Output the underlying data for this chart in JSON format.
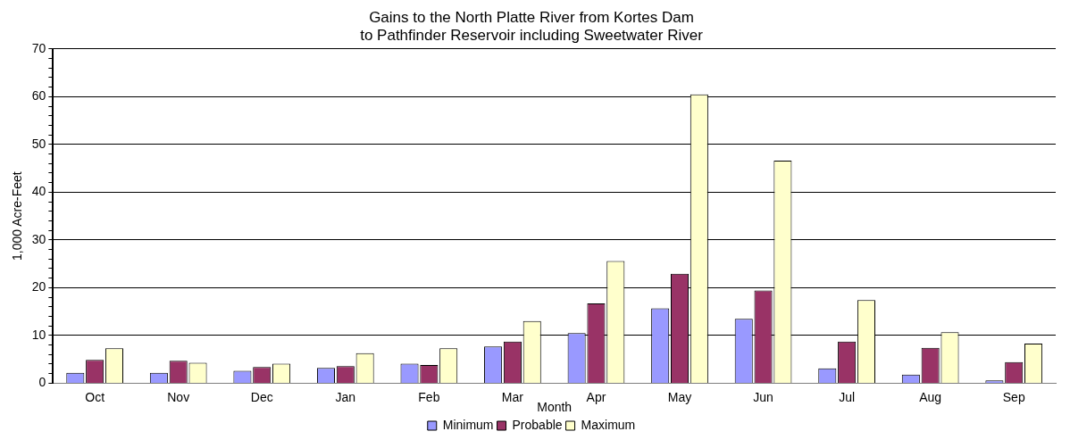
{
  "chart_data": {
    "type": "bar",
    "title": "Gains to the North Platte River from Kortes Dam\nto Pathfinder Reservoir including Sweetwater River",
    "xlabel": "Month",
    "ylabel": "1,000 Acre-Feet",
    "categories": [
      "Oct",
      "Nov",
      "Dec",
      "Jan",
      "Feb",
      "Mar",
      "Apr",
      "May",
      "Jun",
      "Jul",
      "Aug",
      "Sep"
    ],
    "series": [
      {
        "name": "Minimum",
        "color": "#9999ff",
        "values": [
          2.2,
          2.2,
          2.6,
          3.2,
          4.1,
          7.7,
          10.5,
          15.7,
          13.5,
          3.1,
          1.8,
          0.6
        ]
      },
      {
        "name": "Probable",
        "color": "#993366",
        "values": [
          4.9,
          4.7,
          3.4,
          3.6,
          3.8,
          8.7,
          16.7,
          22.9,
          19.4,
          8.7,
          7.4,
          4.4
        ]
      },
      {
        "name": "Maximum",
        "color": "#ffffcc",
        "values": [
          7.3,
          4.3,
          4.1,
          6.3,
          7.3,
          13,
          25.6,
          60.5,
          46.6,
          17.4,
          10.7,
          8.3
        ]
      }
    ],
    "ylim": [
      0,
      70
    ],
    "yticks": [
      0,
      {
        "value": 2,
        "label": null
      },
      {
        "value": 4,
        "label": null
      },
      {
        "value": 6,
        "label": null
      },
      {
        "value": 8,
        "label": null
      },
      10,
      {
        "value": 12,
        "label": null
      },
      {
        "value": 14,
        "label": null
      },
      {
        "value": 16,
        "label": null
      },
      {
        "value": 18,
        "label": null
      },
      20,
      {
        "value": 22,
        "label": null
      },
      {
        "value": 24,
        "label": null
      },
      {
        "value": 26,
        "label": null
      },
      {
        "value": 28,
        "label": null
      },
      30,
      {
        "value": 32,
        "label": null
      },
      {
        "value": 34,
        "label": null
      },
      {
        "value": 36,
        "label": null
      },
      {
        "value": 38,
        "label": null
      },
      40,
      {
        "value": 42,
        "label": null
      },
      {
        "value": 44,
        "label": null
      },
      {
        "value": 46,
        "label": null
      },
      {
        "value": 48,
        "label": null
      },
      50,
      {
        "value": 52,
        "label": null
      },
      {
        "value": 54,
        "label": null
      },
      {
        "value": 56,
        "label": null
      },
      {
        "value": 58,
        "label": null
      },
      60,
      {
        "value": 62,
        "label": null
      },
      {
        "value": 64,
        "label": null
      },
      {
        "value": 66,
        "label": null
      },
      {
        "value": 68,
        "label": null
      },
      70
    ],
    "grid": "y",
    "legend": "bottom"
  }
}
